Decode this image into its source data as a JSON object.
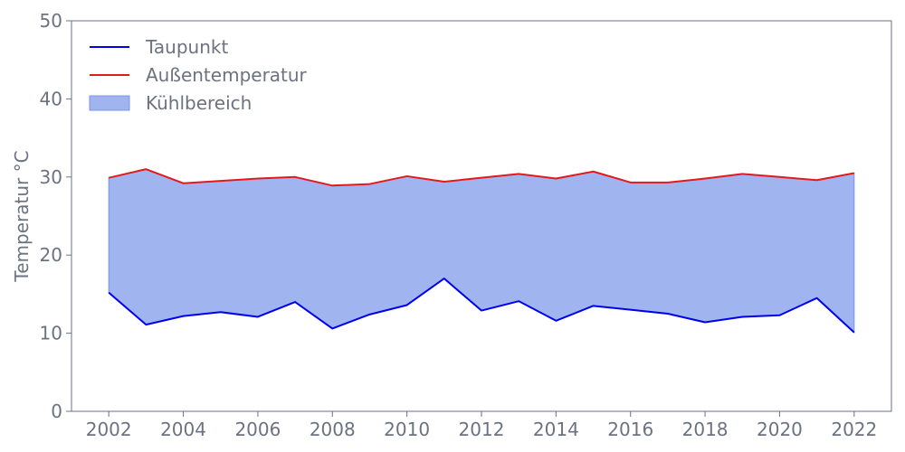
{
  "chart_data": {
    "type": "line",
    "title": "",
    "xlabel": "",
    "ylabel": "Temperatur °C",
    "x": [
      2002,
      2003,
      2004,
      2005,
      2006,
      2007,
      2008,
      2009,
      2010,
      2011,
      2012,
      2013,
      2014,
      2015,
      2016,
      2017,
      2018,
      2019,
      2020,
      2021,
      2022
    ],
    "xlim": [
      2001,
      2023
    ],
    "ylim": [
      0,
      50
    ],
    "xticks": [
      "2002",
      "2004",
      "2006",
      "2008",
      "2010",
      "2012",
      "2014",
      "2016",
      "2018",
      "2020",
      "2022"
    ],
    "yticks": [
      "0",
      "10",
      "20",
      "30",
      "40",
      "50"
    ],
    "grid": false,
    "legend_position": "top-left",
    "series": [
      {
        "name": "Taupunkt",
        "color": "#0000ee",
        "values": [
          15.2,
          11.1,
          12.2,
          12.7,
          12.1,
          14.0,
          10.6,
          12.4,
          13.6,
          17.0,
          12.9,
          14.1,
          11.6,
          13.5,
          13.0,
          12.5,
          11.4,
          12.1,
          12.3,
          14.5,
          10.1
        ]
      },
      {
        "name": "Außentemperatur",
        "color": "#e31a1c",
        "values": [
          29.9,
          31.0,
          29.2,
          29.5,
          29.8,
          30.0,
          28.9,
          29.1,
          30.1,
          29.4,
          29.9,
          30.4,
          29.8,
          30.7,
          29.3,
          29.3,
          29.8,
          30.4,
          30.0,
          29.6,
          30.5
        ]
      }
    ],
    "fill_between": {
      "name": "Kühlbereich",
      "color": "#a0b4ef",
      "edge_color": "#7c93e8"
    }
  }
}
